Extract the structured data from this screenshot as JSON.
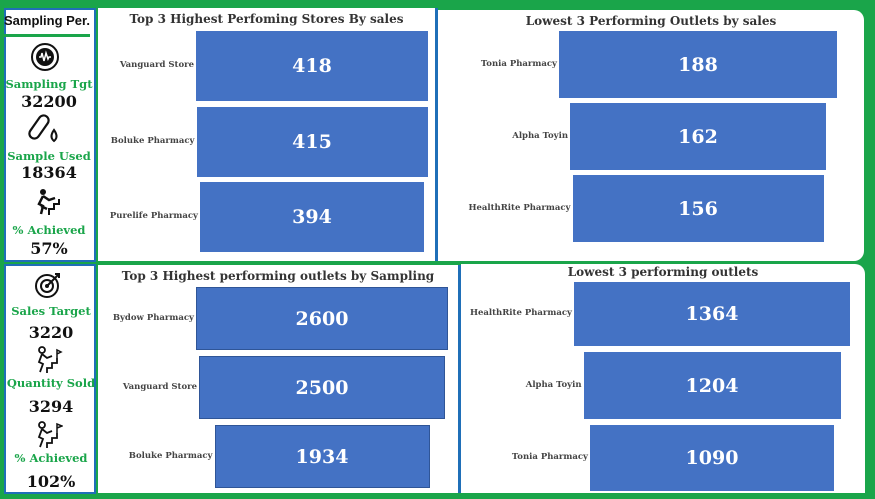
{
  "sidebar": {
    "title": "Sampling Per.",
    "kpis_top": [
      {
        "icon": "sampling-target-icon",
        "label": "Sampling Tgt",
        "value": "32200"
      },
      {
        "icon": "test-tube-icon",
        "label": "Sample Used",
        "value": "18364"
      },
      {
        "icon": "achievement-icon",
        "label": "% Achieved",
        "value": "57%"
      }
    ],
    "kpis_bottom": [
      {
        "icon": "target-icon",
        "label": "Sales Target",
        "value": "3220"
      },
      {
        "icon": "climb-icon",
        "label": "Quantity Sold",
        "value": "3294"
      },
      {
        "icon": "goal-flag-icon",
        "label": "% Achieved",
        "value": "102%"
      }
    ]
  },
  "colors": {
    "background": "#1aa54a",
    "bar": "#4472c4",
    "border": "#1f6fb8",
    "kpi_label": "#1aa54a"
  },
  "chart_data": [
    {
      "type": "bar",
      "title": "Top 3 Highest Perfoming Stores By sales",
      "categories": [
        "Vanguard Store",
        "Boluke Pharmacy",
        "Purelife Pharmacy"
      ],
      "values": [
        418,
        415,
        394
      ]
    },
    {
      "type": "bar",
      "title": "Lowest 3 Performing Outlets by sales",
      "categories": [
        "Tonia Pharmacy",
        "Alpha Toyin",
        "HealthRite Pharmacy"
      ],
      "values": [
        188,
        162,
        156
      ]
    },
    {
      "type": "bar",
      "title": "Top 3 Highest performing outlets by Sampling",
      "categories": [
        "Bydow Pharmacy",
        "Vanguard Store",
        "Boluke Pharmacy"
      ],
      "values": [
        2600,
        2500,
        1934
      ]
    },
    {
      "type": "bar",
      "title": "Lowest 3 performing outlets",
      "categories": [
        "HealthRite Pharmacy",
        "Alpha Toyin",
        "Tonia Pharmacy"
      ],
      "values": [
        1364,
        1204,
        1090
      ]
    }
  ]
}
